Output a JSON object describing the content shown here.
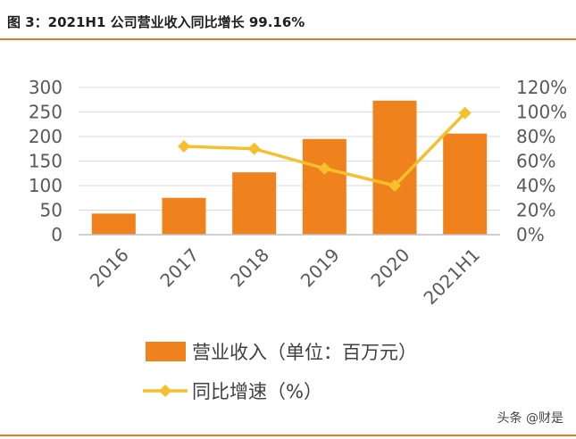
{
  "figure": {
    "title": "图 3：2021H1 公司营业收入同比增长 99.16%",
    "watermark": "头条 @财是"
  },
  "chart_data": {
    "type": "bar",
    "categories": [
      "2016",
      "2017",
      "2018",
      "2019",
      "2020",
      "2021H1"
    ],
    "series": [
      {
        "name": "营业收入（单位：百万元）",
        "type": "bar",
        "axis": "left",
        "values": [
          43,
          75,
          127,
          195,
          273,
          206
        ],
        "color": "#f0821e"
      },
      {
        "name": "同比增速（%）",
        "type": "line",
        "axis": "right",
        "values": [
          null,
          72,
          70,
          54,
          40,
          99.16
        ],
        "color": "#f5bf2d"
      }
    ],
    "y_left": {
      "ylim": [
        0,
        300
      ],
      "ticks": [
        "0",
        "50",
        "100",
        "150",
        "200",
        "250",
        "300"
      ]
    },
    "y_right": {
      "ylim": [
        0,
        120
      ],
      "ticks": [
        "0%",
        "20%",
        "40%",
        "60%",
        "80%",
        "100%",
        "120%"
      ]
    },
    "grid": true,
    "legend_position": "bottom"
  }
}
